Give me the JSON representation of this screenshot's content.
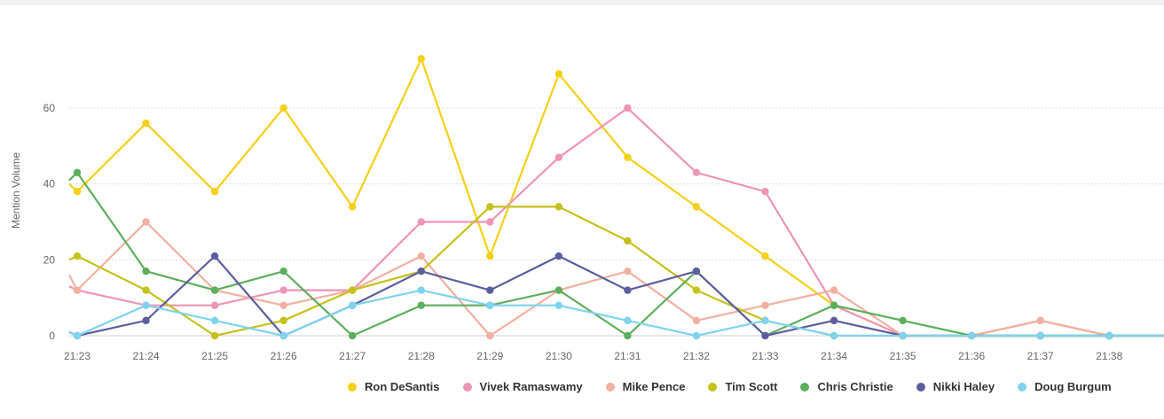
{
  "chart_data": {
    "type": "line",
    "ylabel": "Mention Volume",
    "xlabel": "",
    "x": [
      "21:23",
      "21:24",
      "21:25",
      "21:26",
      "21:27",
      "21:28",
      "21:29",
      "21:30",
      "21:31",
      "21:32",
      "21:33",
      "21:34",
      "21:35",
      "21:36",
      "21:37",
      "21:38"
    ],
    "y_ticks": [
      0,
      20,
      40,
      60
    ],
    "ylim": [
      0,
      75
    ],
    "grid": "horizontal dotted",
    "legend_position": "bottom",
    "series": [
      {
        "name": "Ron DeSantis",
        "color": "#f4d019",
        "values": [
          38,
          56,
          38,
          60,
          34,
          73,
          21,
          69,
          47,
          34,
          21,
          8,
          0,
          0,
          0,
          0
        ],
        "lead": 40,
        "tail": 0
      },
      {
        "name": "Vivek Ramaswamy",
        "color": "#ef94b7",
        "values": [
          12,
          8,
          8,
          12,
          12,
          30,
          30,
          47,
          60,
          43,
          38,
          8,
          0,
          0,
          4,
          0
        ],
        "lead": 13,
        "tail": 0
      },
      {
        "name": "Mike Pence",
        "color": "#f2b0a0",
        "values": [
          12,
          30,
          12,
          8,
          12,
          21,
          0,
          12,
          17,
          4,
          8,
          12,
          0,
          0,
          4,
          0
        ],
        "lead": 16,
        "tail": 0
      },
      {
        "name": "Tim Scott",
        "color": "#c4c21b",
        "values": [
          21,
          12,
          0,
          4,
          12,
          17,
          34,
          34,
          25,
          12,
          4,
          0,
          0,
          0,
          0,
          0
        ],
        "lead": 20,
        "tail": 0
      },
      {
        "name": "Chris Christie",
        "color": "#5caf5c",
        "values": [
          43,
          17,
          12,
          17,
          0,
          8,
          8,
          12,
          0,
          17,
          0,
          8,
          4,
          0,
          0,
          0
        ],
        "lead": 41,
        "tail": 0
      },
      {
        "name": "Nikki Haley",
        "color": "#5c5e9e",
        "values": [
          0,
          4,
          21,
          0,
          8,
          17,
          12,
          21,
          12,
          17,
          0,
          4,
          0,
          0,
          0,
          0
        ],
        "lead": 1,
        "tail": 0
      },
      {
        "name": "Doug Burgum",
        "color": "#7fd3ef",
        "values": [
          0,
          8,
          4,
          0,
          8,
          12,
          8,
          8,
          4,
          0,
          4,
          0,
          0,
          0,
          0,
          0
        ],
        "lead": 1,
        "tail": 0
      }
    ]
  }
}
